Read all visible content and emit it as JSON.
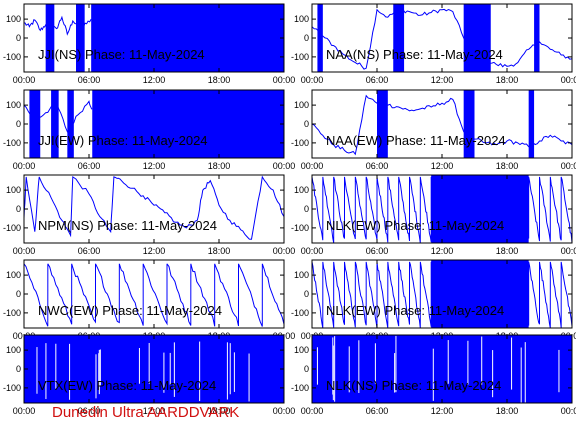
{
  "footer": {
    "caption": "Dunedin Ultra AARDDVARK"
  },
  "colors": {
    "trace": "#0000ff",
    "axis": "#000000",
    "caption": "#d01010",
    "background": "#ffffff"
  },
  "x_ticks": [
    "00:00",
    "06:00",
    "12:00",
    "18:00",
    "00:00"
  ],
  "y_ticks": [
    "100",
    "0",
    "-100"
  ],
  "chart_data": [
    {
      "type": "line",
      "title": "JJI(NS) Phase: 11-May-2024",
      "xlim": [
        0,
        24
      ],
      "ylim": [
        -180,
        180
      ],
      "noise_segments": [
        [
          2.0,
          2.8
        ],
        [
          4.8,
          5.6
        ],
        [
          6.2,
          24
        ]
      ],
      "series": [
        {
          "values": [
            [
              0,
              80
            ],
            [
              0.5,
              60
            ],
            [
              1,
              95
            ],
            [
              1.5,
              40
            ],
            [
              2,
              70
            ],
            [
              3,
              50
            ],
            [
              3.5,
              110
            ],
            [
              4,
              20
            ],
            [
              4.5,
              90
            ],
            [
              5.5,
              60
            ],
            [
              6.2,
              100
            ]
          ]
        }
      ]
    },
    {
      "type": "line",
      "title": "NAA(NS) Phase: 11-May-2024",
      "xlim": [
        0,
        24
      ],
      "ylim": [
        -180,
        180
      ],
      "noise_segments": [
        [
          0.5,
          1.0
        ],
        [
          7.5,
          8.5
        ],
        [
          14.0,
          16.5
        ],
        [
          20.5,
          21.0
        ]
      ],
      "series": [
        {
          "values": [
            [
              0,
              60
            ],
            [
              1,
              10
            ],
            [
              2,
              -40
            ],
            [
              3,
              -90
            ],
            [
              4,
              -130
            ],
            [
              5,
              -160
            ],
            [
              6,
              150
            ],
            [
              7,
              110
            ],
            [
              8,
              150
            ],
            [
              9,
              140
            ],
            [
              10,
              120
            ],
            [
              11,
              135
            ],
            [
              12,
              150
            ],
            [
              13,
              140
            ],
            [
              14,
              0
            ],
            [
              15,
              -60
            ],
            [
              16,
              -120
            ],
            [
              17,
              -140
            ],
            [
              18,
              -150
            ],
            [
              19,
              -130
            ],
            [
              20,
              -60
            ],
            [
              21,
              -20
            ],
            [
              22,
              -60
            ],
            [
              23,
              -90
            ],
            [
              24,
              -110
            ]
          ]
        }
      ]
    },
    {
      "type": "line",
      "title": "JJI(EW) Phase: 11-May-2024",
      "xlim": [
        0,
        24
      ],
      "ylim": [
        -180,
        180
      ],
      "noise_segments": [
        [
          0.5,
          1.5
        ],
        [
          2.5,
          3.2
        ],
        [
          4.0,
          4.6
        ],
        [
          6.3,
          24
        ]
      ],
      "series": [
        {
          "values": [
            [
              0,
              100
            ],
            [
              1,
              20
            ],
            [
              2,
              60
            ],
            [
              3,
              110
            ],
            [
              4,
              -40
            ],
            [
              5,
              50
            ],
            [
              6,
              120
            ],
            [
              6.3,
              80
            ]
          ]
        }
      ]
    },
    {
      "type": "line",
      "title": "NAA(EW) Phase: 11-May-2024",
      "xlim": [
        0,
        24
      ],
      "ylim": [
        -180,
        180
      ],
      "noise_segments": [
        [
          6.0,
          7.0
        ],
        [
          14.0,
          15.0
        ],
        [
          20.0,
          20.5
        ]
      ],
      "series": [
        {
          "values": [
            [
              0,
              0
            ],
            [
              1,
              -60
            ],
            [
              2,
              -110
            ],
            [
              3,
              -140
            ],
            [
              4,
              -160
            ],
            [
              5,
              150
            ],
            [
              6,
              110
            ],
            [
              7,
              100
            ],
            [
              8,
              90
            ],
            [
              9,
              70
            ],
            [
              10,
              80
            ],
            [
              11,
              90
            ],
            [
              12,
              110
            ],
            [
              13,
              130
            ],
            [
              14,
              -40
            ],
            [
              15,
              -80
            ],
            [
              16,
              -100
            ],
            [
              17,
              -110
            ],
            [
              18,
              -90
            ],
            [
              19,
              -100
            ],
            [
              20,
              -120
            ],
            [
              21,
              -90
            ],
            [
              22,
              -60
            ],
            [
              23,
              -90
            ],
            [
              24,
              -110
            ]
          ]
        }
      ]
    },
    {
      "type": "line",
      "title": "NPM(NS) Phase: 11-May-2024",
      "xlim": [
        0,
        24
      ],
      "ylim": [
        -180,
        180
      ],
      "noise_segments": [],
      "series": [
        {
          "values": [
            [
              0,
              -50
            ],
            [
              0.2,
              170
            ],
            [
              1,
              -120
            ],
            [
              1.4,
              170
            ],
            [
              2.5,
              60
            ],
            [
              3.5,
              -60
            ],
            [
              4.3,
              -140
            ],
            [
              4.5,
              170
            ],
            [
              6,
              80
            ],
            [
              7,
              -40
            ],
            [
              8,
              -120
            ],
            [
              8.3,
              170
            ],
            [
              9,
              150
            ],
            [
              10,
              110
            ],
            [
              11,
              70
            ],
            [
              12,
              20
            ],
            [
              13,
              -20
            ],
            [
              14,
              -70
            ],
            [
              15,
              -100
            ],
            [
              16,
              -60
            ],
            [
              16.5,
              100
            ],
            [
              17.2,
              150
            ],
            [
              18,
              20
            ],
            [
              19,
              -60
            ],
            [
              20,
              -110
            ],
            [
              21,
              -160
            ],
            [
              22,
              170
            ],
            [
              23,
              100
            ],
            [
              24,
              -40
            ]
          ]
        }
      ]
    },
    {
      "type": "line",
      "title": "NLK(EW) Phase: 11-May-2024",
      "xlim": [
        0,
        24
      ],
      "ylim": [
        -180,
        180
      ],
      "noise_segments": [
        [
          11.0,
          20.0
        ]
      ],
      "sawtooth": {
        "period_hours": 1.0,
        "high": 170,
        "low": -170
      },
      "series": []
    },
    {
      "type": "line",
      "title": "NWC(EW) Phase: 11-May-2024",
      "xlim": [
        0,
        24
      ],
      "ylim": [
        -180,
        180
      ],
      "noise_segments": [],
      "sawtooth": {
        "period_hours": 2.2,
        "high": 160,
        "low": -160
      },
      "series": []
    },
    {
      "type": "line",
      "title": "NLK(EW) Phase: 11-May-2024",
      "xlim": [
        0,
        24
      ],
      "ylim": [
        -180,
        180
      ],
      "noise_segments": [
        [
          11.0,
          20.0
        ]
      ],
      "sawtooth": {
        "period_hours": 1.0,
        "high": 170,
        "low": -170
      },
      "series": []
    },
    {
      "type": "line",
      "title": "VTX(EW) Phase: 11-May-2024",
      "xlim": [
        0,
        24
      ],
      "ylim": [
        -180,
        180
      ],
      "noise_segments": [
        [
          0,
          24
        ]
      ],
      "series": []
    },
    {
      "type": "line",
      "title": "NLK(NS) Phase: 11-May-2024",
      "xlim": [
        0,
        24
      ],
      "ylim": [
        -180,
        180
      ],
      "noise_segments": [
        [
          0,
          24
        ]
      ],
      "series": []
    }
  ]
}
